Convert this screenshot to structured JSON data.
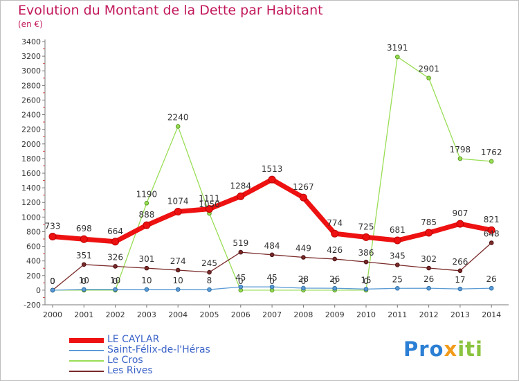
{
  "header": {
    "title": "Evolution du Montant de la Dette par Habitant",
    "subtitle": "(en €)"
  },
  "logo": {
    "part1": "Pro",
    "part2": "x",
    "part3": "iti"
  },
  "chart_data": {
    "type": "line",
    "title": "Evolution du Montant de la Dette par Habitant",
    "subtitle": "(en €)",
    "xlabel": "",
    "ylabel": "",
    "x": [
      "2000",
      "2001",
      "2002",
      "2003",
      "2004",
      "2005",
      "2006",
      "2007",
      "2008",
      "2009",
      "2010",
      "2011",
      "2012",
      "2013",
      "2014"
    ],
    "yticks": [
      "-200",
      "0",
      "200",
      "400",
      "600",
      "800",
      "1000",
      "1200",
      "1400",
      "1600",
      "1800",
      "2000",
      "2200",
      "2400",
      "2600",
      "2800",
      "3000",
      "3200",
      "3400"
    ],
    "ylim": [
      -200,
      3400
    ],
    "grid": false,
    "legend_position": "bottom-left",
    "series": [
      {
        "name": "LE CAYLAR",
        "color": "#ee1111",
        "values": [
          733,
          698,
          664,
          888,
          1074,
          1111,
          1284,
          1513,
          1267,
          774,
          725,
          681,
          785,
          907,
          821
        ],
        "labels": [
          "733",
          "698",
          "664",
          "888",
          "1074",
          "1111",
          "1284",
          "1513",
          "1267",
          "774",
          "725",
          "681",
          "785",
          "907",
          "821"
        ]
      },
      {
        "name": "Saint-Félix-de-l'Héras",
        "color": "#5b9bd5",
        "values": [
          0,
          10,
          10,
          10,
          10,
          8,
          45,
          45,
          28,
          26,
          15,
          25,
          26,
          17,
          26
        ],
        "labels": [
          "0",
          "10",
          "10",
          "10",
          "10",
          "8",
          "45",
          "45",
          "28",
          "26",
          "15",
          "25",
          "26",
          "17",
          "26"
        ]
      },
      {
        "name": "Le Cros",
        "color": "#99dd55",
        "values": [
          0,
          0,
          0,
          1190,
          2240,
          1050,
          0,
          0,
          0,
          0,
          0,
          3191,
          2901,
          1798,
          1762
        ],
        "labels": [
          "0",
          "0",
          "0",
          "1190",
          "2240",
          "1050",
          "0",
          "0",
          "0",
          "0",
          "0",
          "3191",
          "2901",
          "1798",
          "1762"
        ]
      },
      {
        "name": "Les Rives",
        "color": "#7a2a2a",
        "values": [
          0,
          351,
          326,
          301,
          274,
          245,
          519,
          484,
          449,
          426,
          386,
          345,
          302,
          266,
          648
        ],
        "labels": [
          "0",
          "351",
          "326",
          "301",
          "274",
          "245",
          "519",
          "484",
          "449",
          "426",
          "386",
          "345",
          "302",
          "266",
          "648"
        ]
      }
    ]
  }
}
